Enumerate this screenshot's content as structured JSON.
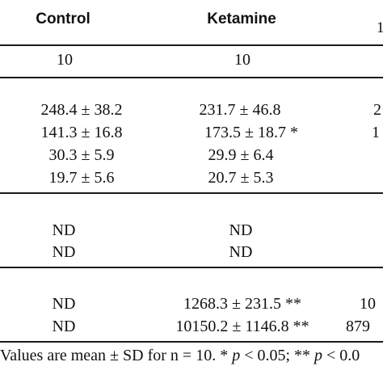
{
  "header": {
    "control": "Control",
    "ketamine": "Ketamine",
    "third_fragment": "1"
  },
  "n_row": {
    "control": "10",
    "ketamine": "10"
  },
  "group1": {
    "control": [
      "248.4 ± 38.2",
      "141.3 ± 16.8",
      "30.3 ± 5.9",
      "19.7 ± 5.6"
    ],
    "ketamine": [
      "231.7 ± 46.8",
      "173.5 ± 18.7 *",
      "29.9 ± 6.4",
      "20.7 ± 5.3"
    ],
    "third_fragment": [
      "2",
      "1",
      "",
      ""
    ]
  },
  "group2": {
    "control": [
      "ND",
      "ND"
    ],
    "ketamine": [
      "ND",
      "ND"
    ]
  },
  "group3": {
    "control": [
      "ND",
      "ND"
    ],
    "ketamine": [
      "1268.3 ± 231.5 **",
      "10150.2 ± 1146.8 **"
    ],
    "third_fragment": [
      "10",
      "879"
    ]
  },
  "footnote": {
    "prefix": "Values are mean ± SD for n = 10. * ",
    "p1": "p",
    "mid": " < 0.05; ** ",
    "p2": "p",
    "suffix": " < 0.0"
  }
}
